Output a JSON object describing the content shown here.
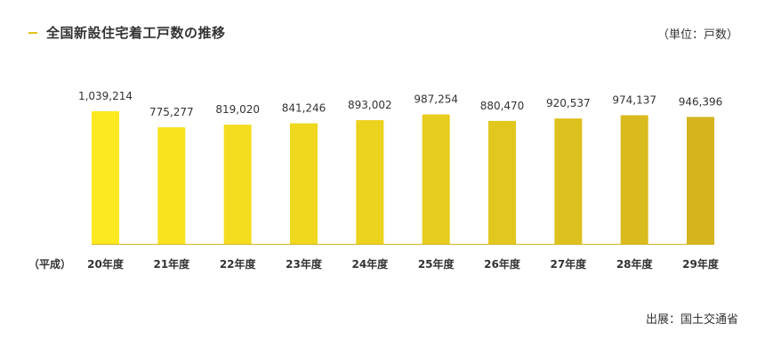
{
  "header": {
    "title": "全国新設住宅着工戸数の推移",
    "unit": "（単位：戸数）"
  },
  "footer": {
    "source": "出展：国土交通省"
  },
  "chart_data": {
    "type": "bar",
    "era_label": "（平成）",
    "categories": [
      "20年度",
      "21年度",
      "22年度",
      "23年度",
      "24年度",
      "25年度",
      "26年度",
      "27年度",
      "28年度",
      "29年度"
    ],
    "values": [
      1039214,
      775277,
      819020,
      841246,
      893002,
      987254,
      880470,
      920537,
      974137,
      946396
    ],
    "value_labels": [
      "1,039,214",
      "775,277",
      "819,020",
      "841,246",
      "893,002",
      "987,254",
      "880,470",
      "920,537",
      "974,137",
      "946,396"
    ],
    "colors": [
      "#fce91f",
      "#f8e31e",
      "#f3dd1e",
      "#efd81e",
      "#ebd31e",
      "#e6cd1e",
      "#e2c71e",
      "#ddc11e",
      "#d9bb1e",
      "#d4b51e"
    ],
    "baseline_color": "#d4b51e",
    "title": "全国新設住宅着工戸数の推移",
    "xlabel": "",
    "ylabel": "",
    "legend": "none",
    "grid": false
  }
}
